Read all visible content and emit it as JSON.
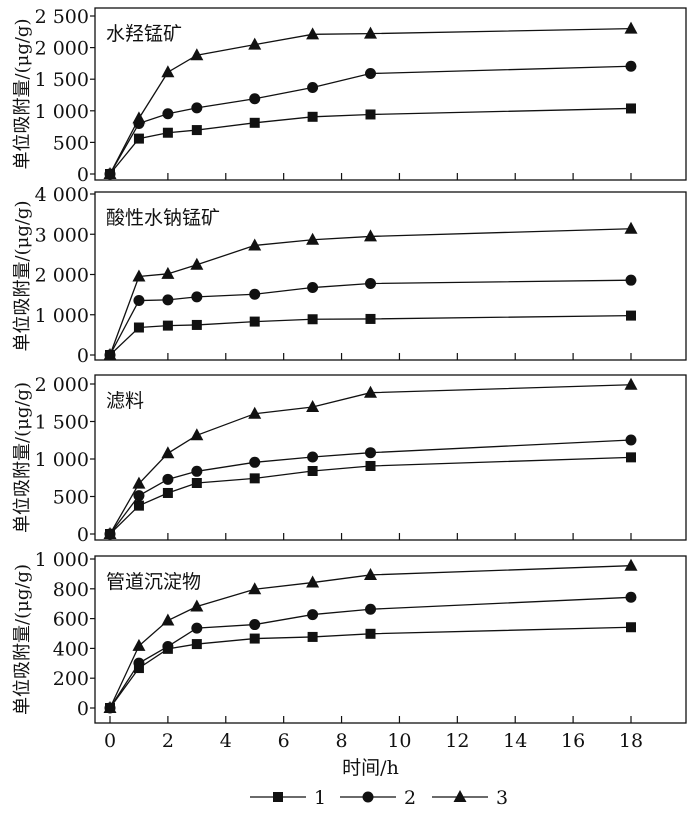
{
  "chart_data": {
    "type": "line",
    "xlabel": "时间/h",
    "x": [
      0,
      1,
      2,
      3,
      5,
      7,
      9,
      18
    ],
    "xticks": [
      "0",
      "2",
      "4",
      "6",
      "8",
      "10",
      "12",
      "14",
      "16",
      "18"
    ],
    "xlim": [
      -0.8,
      19.5
    ],
    "legend": {
      "placement": "bottom-center",
      "entries": [
        "1",
        "2",
        "3"
      ]
    },
    "panels": [
      {
        "title": "水羟锰矿",
        "ylabel": "单位吸附量/(μg/g)",
        "ylim": [
          -100,
          2500
        ],
        "yticks": [
          0,
          500,
          1000,
          1500,
          2000,
          2500
        ],
        "ytick_labels": [
          "0",
          "500",
          "1 000",
          "1 500",
          "2 000",
          "2 500"
        ],
        "series": [
          {
            "name": "1",
            "marker": "square",
            "values": [
              0,
              560,
              653,
              695,
              810,
              905,
              942,
              1037
            ]
          },
          {
            "name": "2",
            "marker": "circle",
            "values": [
              0,
              800,
              953,
              1047,
              1190,
              1368,
              1590,
              1705
            ]
          },
          {
            "name": "3",
            "marker": "triangle",
            "values": [
              0,
              880,
              1610,
              1879,
              2047,
              2210,
              2221,
              2300
            ]
          }
        ]
      },
      {
        "title": "酸性水钠锰矿",
        "ylabel": "单位吸附量/(μg/g)",
        "ylim": [
          -150,
          4000
        ],
        "yticks": [
          0,
          1000,
          2000,
          3000,
          4000
        ],
        "ytick_labels": [
          "0",
          "1 000",
          "2 000",
          "3 000",
          "4 000"
        ],
        "series": [
          {
            "name": "1",
            "marker": "square",
            "values": [
              0,
              683,
              730,
              747,
              830,
              888,
              896,
              979
            ]
          },
          {
            "name": "2",
            "marker": "circle",
            "values": [
              0,
              1353,
              1369,
              1444,
              1510,
              1676,
              1776,
              1859
            ]
          },
          {
            "name": "3",
            "marker": "triangle",
            "values": [
              0,
              1950,
              2017,
              2241,
              2722,
              2863,
              2946,
              3137
            ]
          }
        ]
      },
      {
        "title": "滤料",
        "ylabel": "单位吸附量/(μg/g)",
        "ylim": [
          -100,
          2000
        ],
        "yticks": [
          0,
          500,
          1000,
          1500,
          2000
        ],
        "ytick_labels": [
          "0",
          "500",
          "1 000",
          "1 500",
          "2 000"
        ],
        "series": [
          {
            "name": "1",
            "marker": "square",
            "values": [
              0,
              378,
              547,
              680,
              742,
              840,
              907,
              1022
            ]
          },
          {
            "name": "2",
            "marker": "circle",
            "values": [
              0,
              511,
              729,
              836,
              956,
              1027,
              1084,
              1253
            ]
          },
          {
            "name": "3",
            "marker": "triangle",
            "values": [
              0,
              671,
              1076,
              1316,
              1604,
              1693,
              1884,
              1990
            ]
          }
        ]
      },
      {
        "title": "管道沉淀物",
        "ylabel": "单位吸附量/(μg/g)",
        "ylim": [
          -100,
          1000
        ],
        "yticks": [
          0,
          200,
          400,
          600,
          800,
          1000
        ],
        "ytick_labels": [
          "0",
          "200",
          "400",
          "600",
          "800",
          "1 000"
        ],
        "series": [
          {
            "name": "1",
            "marker": "square",
            "values": [
              0,
              268,
              397,
              429,
              466,
              477,
              498,
              542
            ]
          },
          {
            "name": "2",
            "marker": "circle",
            "values": [
              0,
              301,
              413,
              536,
              560,
              627,
              663,
              743
            ]
          },
          {
            "name": "3",
            "marker": "triangle",
            "values": [
              0,
              417,
              587,
              681,
              797,
              842,
              893,
              955
            ]
          }
        ]
      }
    ]
  }
}
